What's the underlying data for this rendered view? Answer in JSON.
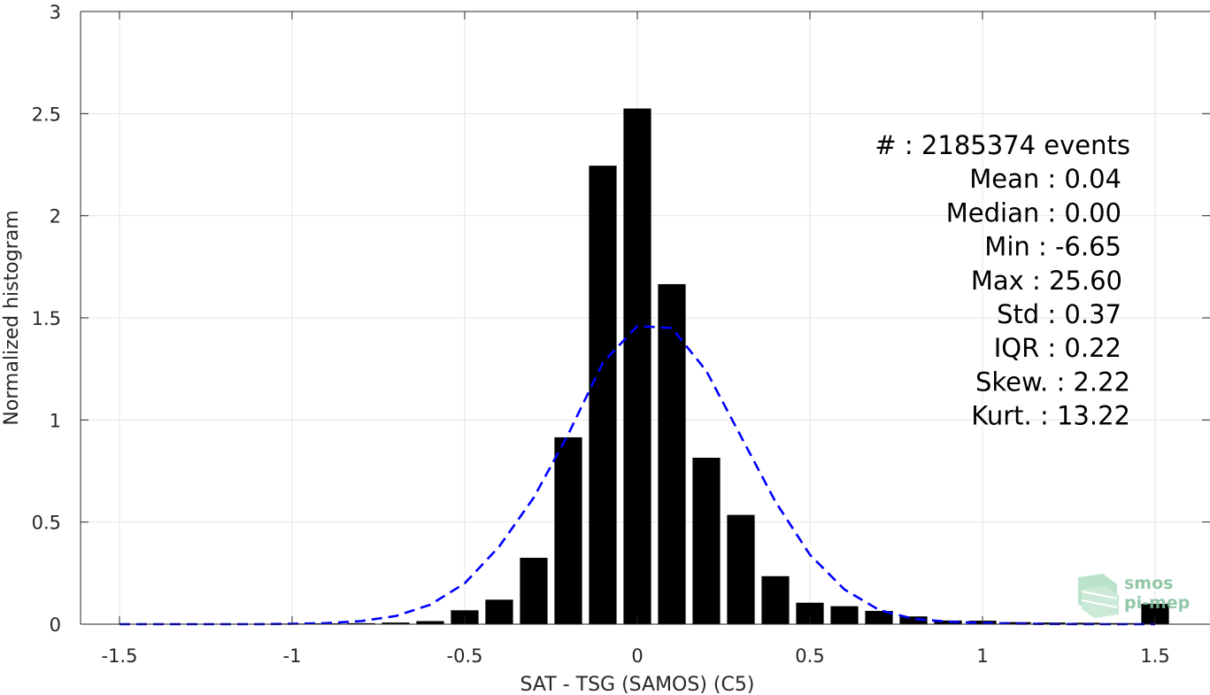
{
  "chart_data": {
    "type": "bar",
    "xlabel": "SAT - TSG (SAMOS) (C5)",
    "ylabel": "Normalized histogram",
    "xlim": [
      -1.55,
      1.55
    ],
    "ylim": [
      0,
      3
    ],
    "xticks": [
      -1.5,
      -1,
      -0.5,
      0,
      0.5,
      1,
      1.5
    ],
    "xtick_labels": [
      "-1.5",
      "-1",
      "-0.5",
      "0",
      "0.5",
      "1",
      "1.5"
    ],
    "yticks": [
      0,
      0.5,
      1,
      1.5,
      2,
      2.5,
      3
    ],
    "ytick_labels": [
      "0",
      "0.5",
      "1",
      "1.5",
      "2",
      "2.5",
      "3"
    ],
    "grid": true,
    "bar_color": "#000000",
    "bars": {
      "x": [
        -1.5,
        -1.4,
        -1.3,
        -1.2,
        -1.1,
        -1.0,
        -0.9,
        -0.8,
        -0.7,
        -0.6,
        -0.5,
        -0.4,
        -0.3,
        -0.2,
        -0.1,
        0.0,
        0.1,
        0.2,
        0.3,
        0.4,
        0.5,
        0.6,
        0.7,
        0.8,
        0.9,
        1.0,
        1.1,
        1.2,
        1.3,
        1.4,
        1.5
      ],
      "values": [
        0.002,
        0.002,
        0.002,
        0.002,
        0.002,
        0.003,
        0.004,
        0.005,
        0.008,
        0.015,
        0.068,
        0.12,
        0.325,
        0.915,
        2.245,
        2.525,
        1.665,
        0.815,
        0.535,
        0.235,
        0.105,
        0.088,
        0.065,
        0.038,
        0.018,
        0.017,
        0.01,
        0.008,
        0.007,
        0.005,
        0.1
      ]
    },
    "fit_curve": {
      "style": "dashed",
      "color": "#0000ff",
      "x": [
        -1.5,
        -1.4,
        -1.3,
        -1.2,
        -1.1,
        -1.0,
        -0.9,
        -0.8,
        -0.7,
        -0.6,
        -0.5,
        -0.4,
        -0.3,
        -0.2,
        -0.1,
        0.0,
        0.1,
        0.2,
        0.3,
        0.4,
        0.5,
        0.6,
        0.7,
        0.8,
        0.9,
        1.0,
        1.1,
        1.2,
        1.3,
        1.4,
        1.5
      ],
      "values": [
        0.0,
        0.0,
        0.0,
        0.0,
        0.0,
        0.002,
        0.005,
        0.015,
        0.04,
        0.095,
        0.2,
        0.38,
        0.62,
        0.93,
        1.28,
        1.46,
        1.45,
        1.24,
        0.92,
        0.6,
        0.34,
        0.17,
        0.07,
        0.026,
        0.012,
        0.006,
        0.003,
        0.001,
        0.0,
        0.0,
        0.0
      ]
    },
    "stats_lines": [
      "#  : 2185374 events",
      "Mean : 0.04",
      "Median : 0.00",
      "Min : -6.65",
      "Max : 25.60",
      "Std : 0.37",
      "IQR : 0.22",
      "Skew. : 2.22",
      "Kurt. : 13.22"
    ]
  },
  "logo": {
    "line1": "smos",
    "line2": "pi-mep",
    "color": "#7fbf9a"
  }
}
